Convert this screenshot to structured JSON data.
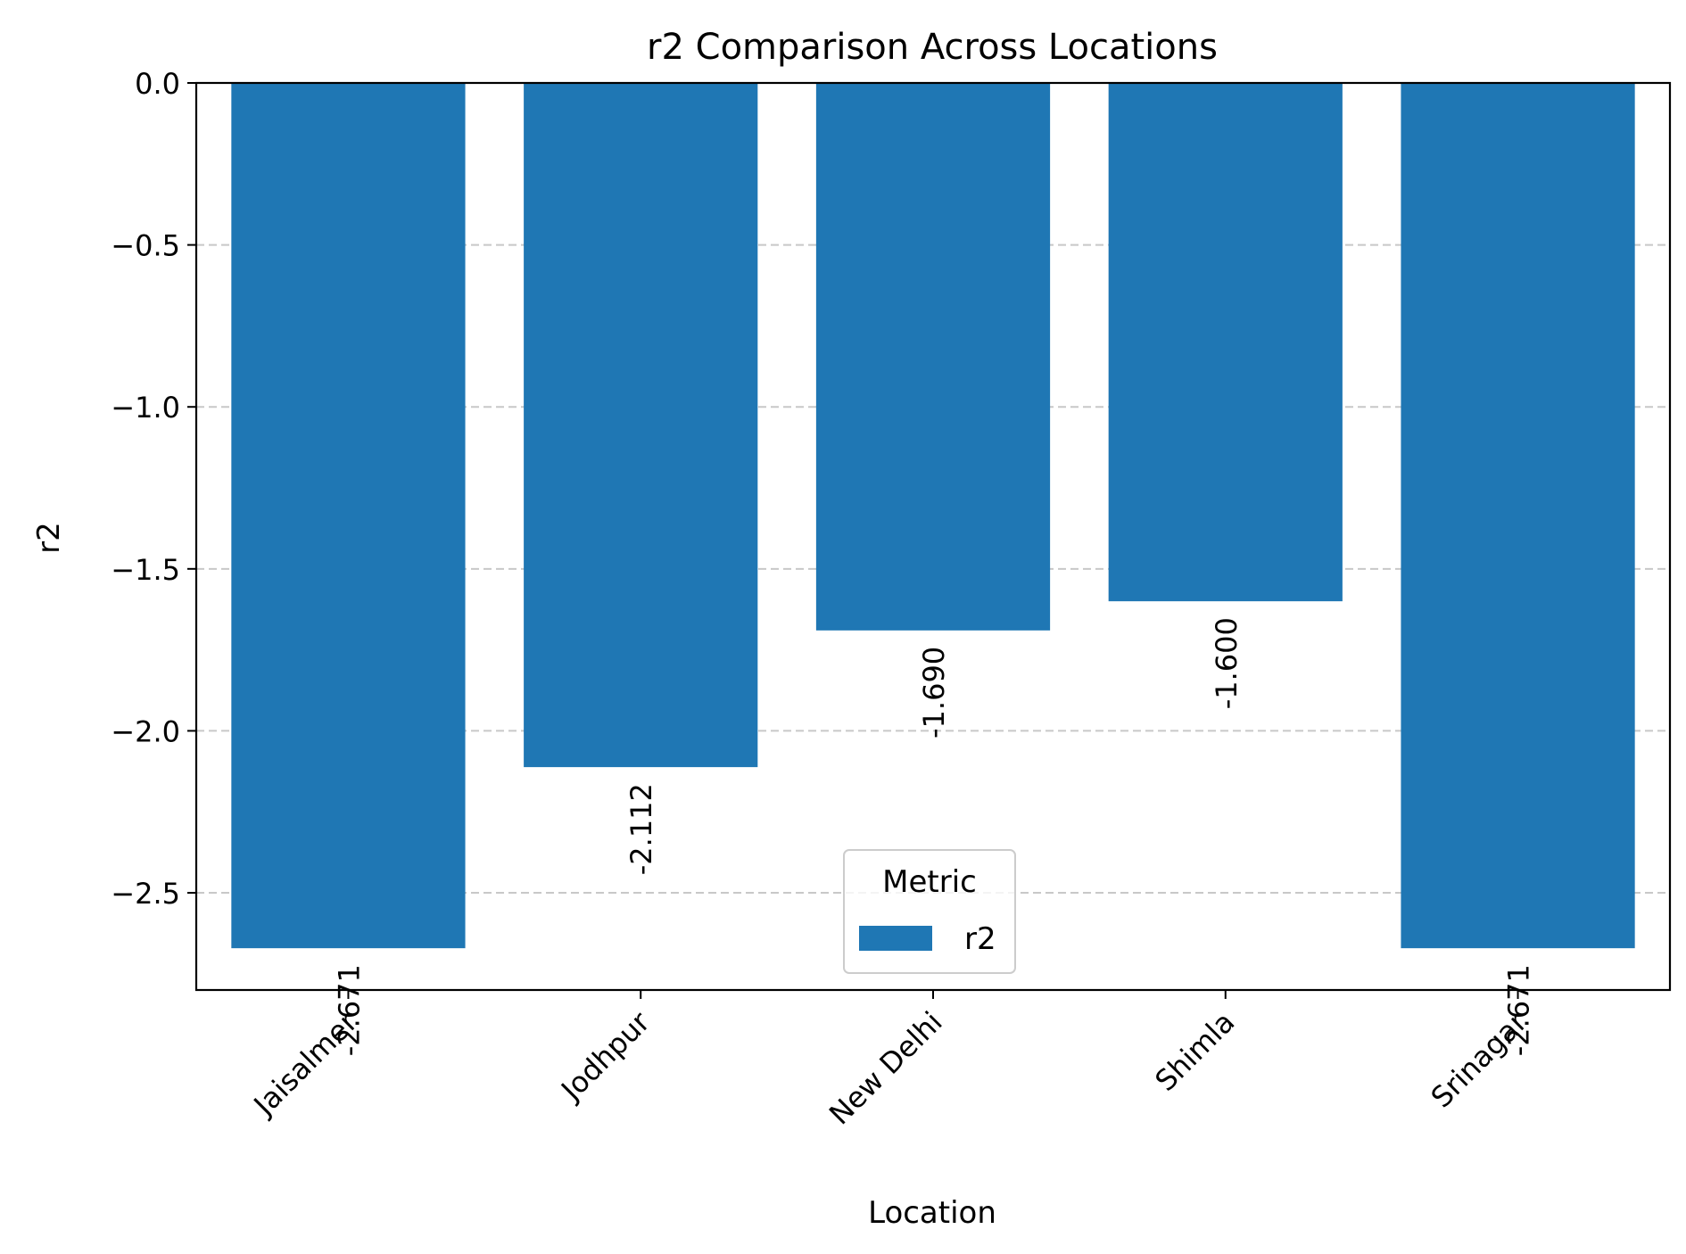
{
  "chart_data": {
    "type": "bar",
    "title": "r2 Comparison Across Locations",
    "xlabel": "Location",
    "ylabel": "r2",
    "categories": [
      "Jaisalmer",
      "Jodhpur",
      "New Delhi",
      "Shimla",
      "Srinagar"
    ],
    "series": [
      {
        "name": "r2",
        "values": [
          -2.671,
          -2.112,
          -1.69,
          -1.6,
          -2.671
        ]
      }
    ],
    "data_labels": [
      "-2.671",
      "-2.112",
      "-1.690",
      "-1.600",
      "-2.671"
    ],
    "ylim": [
      -2.8,
      0.0
    ],
    "yticks": [
      0.0,
      -0.5,
      -1.0,
      -1.5,
      -2.0,
      -2.5
    ],
    "ytick_labels": [
      "0.0",
      "−0.5",
      "−1.0",
      "−1.5",
      "−2.0",
      "−2.5"
    ],
    "grid": "y dashed",
    "legend": {
      "title": "Metric",
      "entries": [
        "r2"
      ],
      "placement": "lower-center"
    },
    "colors": {
      "bar": "#1f77b4",
      "grid": "#c8c8c8",
      "axis": "#000000"
    }
  }
}
